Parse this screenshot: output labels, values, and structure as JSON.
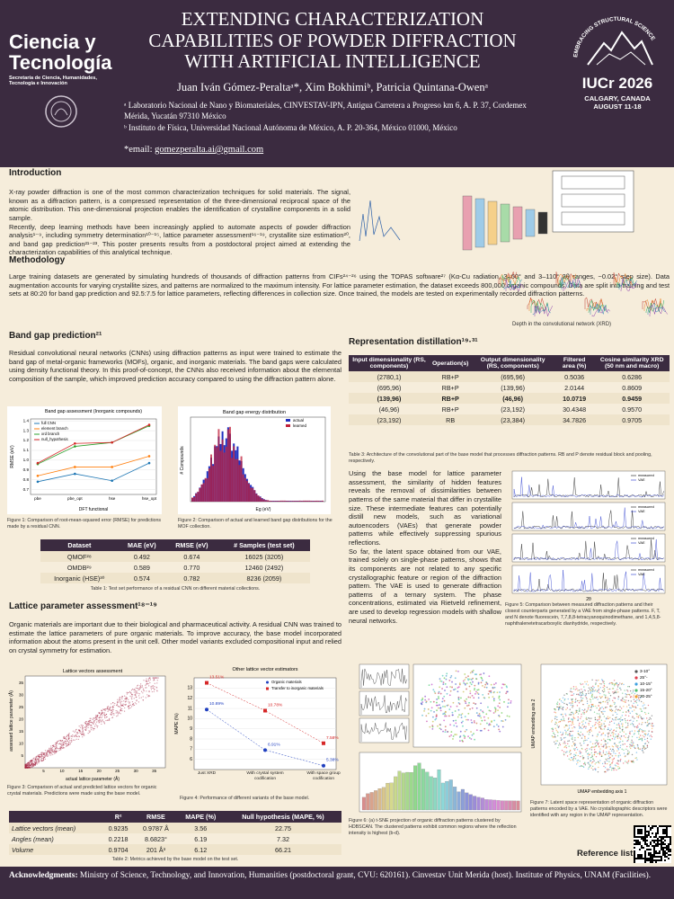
{
  "header": {
    "logo_left": [
      "Ciencia y",
      "Tecnología",
      "Secretaría de Ciencia, Humanidades, Tecnología e Innovación"
    ],
    "title": "EXTENDING CHARACTERIZATION CAPABILITIES OF POWDER DIFFRACTION WITH ARTIFICIAL INTELLIGENCE",
    "authors": "Juan Iván Gómez-Peraltaᵃ*, Xim Bokhimiᵇ, Patricia Quintana-Owenᵃ",
    "affiliations": [
      "ᵃ Laboratorio Nacional de Nano y Biomateriales, CINVESTAV-IPN, Antigua Carretera a Progreso km 6, A. P. 37, Cordemex Mérida, Yucatán 97310 México",
      "ᵇ Instituto de Física, Universidad Nacional Autónoma de México, A. P. 20-364, México 01000, México"
    ],
    "email_label": "*email: ",
    "email": "gomezperalta.ai@gmail.com",
    "logo_right": [
      "EMBRACING STRUCTURAL SCIENCE",
      "IUCr 2026",
      "CALGARY, CANADA",
      "AUGUST 11-18"
    ]
  },
  "introduction": {
    "heading": "Introduction",
    "paragraphs": [
      "X-ray powder diffraction is one of the most common characterization techniques for solid materials. The signal, known as a diffraction pattern, is a compressed representation of the three-dimensional reciprocal space of the atomic distribution. This one-dimensional projection enables the identification of crystalline components in a solid sample.",
      "Recently, deep learning methods have been increasingly applied to automate aspects of powder diffraction analysis¹⁻⁹, including symmetry determination¹⁰⁻¹⁵, lattice parameter assessment¹⁶⁻¹⁹, crystallite size estimation²⁰, and band gap prediction²¹⁻²³. This poster presents results from a postdoctoral project aimed at extending the characterization capabilities of this analytical technique."
    ]
  },
  "methodology": {
    "heading": "Methodology",
    "text": "Large training datasets are generated by simulating hundreds of thousands of diffraction patterns from CIFs²⁴⁻²⁶ using the TOPAS software²⁷ (Kα-Cu radiation, 3–60° and 3–110° 2θ ranges, ~0.02° step size). Data augmentation accounts for varying crystallite sizes, and patterns are normalized to the maximum intensity. For lattice parameter estimation, the dataset exceeds 800,000 organic compounds. Data are split into training and test sets at 80:20 for band gap prediction and 92.5:7.5 for lattice parameters, reflecting differences in collection size. Once trained, the models are tested on experimentally recorded diffraction patterns."
  },
  "network_figure_caption": "Depth in the convolutional network (XRD)",
  "band_gap": {
    "heading": "Band gap prediction²¹",
    "text": "Residual convolutional neural networks (CNNs) using diffraction patterns as input were trained to estimate the band gap of metal-organic frameworks (MOFs), organic, and inorganic materials. The band gaps were calculated using density functional theory. In this proof-of-concept, the CNNs also received information about the elemental composition of the sample, which improved prediction accuracy compared to using the diffraction pattern alone.",
    "figure1_caption": "Figure 1: Comparison of root-mean-squared error (RMSE) for predictions made by a residual CNN.",
    "figure2": {
      "title": "Band gap energy distribution",
      "x_label": "Eg (eV)",
      "y_label": "# Compounds",
      "legend": [
        "actual",
        "learned"
      ]
    },
    "figure2_caption": "Figure 2: Comparison of actual and learned band gap distributions for the MOF collection.",
    "table1": {
      "headers": [
        "Dataset",
        "MAE (eV)",
        "RMSE (eV)",
        "# Samples (test set)"
      ],
      "rows": [
        [
          "QMOF²⁸",
          "0.492",
          "0.674",
          "16025 (3205)"
        ],
        [
          "OMDB²⁹",
          "0.589",
          "0.770",
          "12460 (2492)"
        ],
        [
          "Inorganic (HSE)³⁰",
          "0.574",
          "0.782",
          "8236 (2059)"
        ]
      ],
      "caption": "Table 1: Test set performance of a residual CNN on different material collections."
    }
  },
  "lattice": {
    "heading": "Lattice parameter assessment¹⁸⁻¹⁹",
    "text": "Organic materials are important due to their biological and pharmaceutical activity. A residual CNN was trained to estimate the lattice parameters of pure organic materials. To improve accuracy, the base model incorporated information about the atoms present in the unit cell. Other model variants excluded compositional input and relied on crystal symmetry for estimation.",
    "figure3": {
      "title": "Lattice vectors assessment",
      "x_label": "actual lattice parameter (Å)",
      "y_label": "assessed lattice parameter (Å)",
      "ticks": [
        5,
        10,
        15,
        20,
        25,
        30,
        35
      ]
    },
    "figure3_caption": "Figure 3: Comparison of actual and predicted lattice vectors for organic crystal materials. Predictions were made using the base model.",
    "figure4_caption": "Figure 4: Performance of different variants of the base model.",
    "table2": {
      "headers": [
        "",
        "R²",
        "RMSE",
        "MAPE (%)",
        "Null hypothesis (MAPE, %)"
      ],
      "rows": [
        [
          "Lattice vectors (mean)",
          "0.9235",
          "0.9787 Å",
          "3.56",
          "22.75"
        ],
        [
          "Angles (mean)",
          "0.2218",
          "8.6823°",
          "6.19",
          "7.32"
        ],
        [
          "Volume",
          "0.9704",
          "201 Å³",
          "6.12",
          "66.21"
        ]
      ],
      "caption": "Table 2: Metrics achieved by the base model on the test set."
    }
  },
  "chart_data": [
    {
      "type": "line",
      "title": "Band gap assessment (Inorganic compounds)",
      "x_label": "DFT functional",
      "y_label": "RMSE (eV)",
      "categories": [
        "pbe",
        "pbe_opt",
        "hse",
        "hse_opt"
      ],
      "series": [
        {
          "name": "full CNN",
          "color": "#1f77b4",
          "values": [
            0.78,
            0.86,
            0.79,
            0.97
          ]
        },
        {
          "name": "element branch",
          "color": "#ff7f0e",
          "values": [
            0.84,
            0.93,
            0.93,
            1.04
          ]
        },
        {
          "name": "xrd branch",
          "color": "#2ca02c",
          "values": [
            0.96,
            1.14,
            1.18,
            1.35
          ]
        },
        {
          "name": "null_hypothesis",
          "color": "#d62728",
          "values": [
            0.97,
            1.17,
            1.18,
            1.36
          ]
        }
      ],
      "ylim": [
        0.65,
        1.42
      ],
      "yticks": [
        0.7,
        0.8,
        0.9,
        {
          "value": 1,
          "label": "1.0"
        },
        1.1,
        1.2,
        1.3,
        1.4
      ],
      "grid": true,
      "legend": "upper left"
    },
    {
      "type": "scatter",
      "title": "Other lattice vector estimators",
      "y_label": "MAPE (%)",
      "categories": [
        "Just XRD",
        "With crystal system codification",
        "With space group codification"
      ],
      "series": [
        {
          "name": "Organic materials",
          "color": "#1f3fbf",
          "values": [
            10.89,
            6.91,
            5.38
          ],
          "value_labels": [
            "10.89%",
            "6.91%",
            "5.38%"
          ]
        },
        {
          "name": "Transfer to inorganic materials",
          "color": "#d62728",
          "values": [
            13.51,
            10.78,
            7.58
          ],
          "value_labels": [
            "13.51%",
            "10.78%",
            "7.58%"
          ]
        }
      ],
      "ylim": [
        5,
        14
      ],
      "yticks": [
        6,
        7,
        8,
        9,
        10,
        11,
        12,
        13
      ],
      "grid": true,
      "legend": "upper right"
    }
  ],
  "distillation": {
    "heading": "Representation distillation¹⁹·³¹",
    "table3": {
      "headers": [
        "Input dimensionality (RS, components)",
        "Operation(s)",
        "Output dimensionality (RS, components)",
        "Filtered area (%)",
        "Cosine similarity XRD (50 nm and macro)"
      ],
      "rows": [
        [
          "(2780,1)",
          "RB+P",
          "(695,96)",
          "0.5036",
          "0.6286"
        ],
        [
          "(695,96)",
          "RB+P",
          "(139,96)",
          "2.0144",
          "0.8609"
        ],
        [
          "(139,96)",
          "RB+P",
          "(46,96)",
          "10.0719",
          "0.9459"
        ],
        [
          "(46,96)",
          "RB+P",
          "(23,192)",
          "30.4348",
          "0.9570"
        ],
        [
          "(23,192)",
          "RB",
          "(23,384)",
          "34.7826",
          "0.9705"
        ]
      ],
      "caption": "Table 3: Architecture of the convolutional part of the base model that processes diffraction patterns. RB and P denote residual block and pooling, respectively."
    },
    "paragraphs": [
      "Using the base model for lattice parameter assessment, the similarity of hidden features reveals the removal of dissimilarities between patterns of the same material that differ in crystallite size. These intermediate features can potentially distill new models, such as variational autoencoders (VAEs) that generate powder patterns while effectively suppressing spurious reflections.",
      "So far, the latent space obtained from our VAE, trained solely on single-phase patterns, shows that its components are not related to any specific crystallographic feature or region of the diffraction pattern. The VAE is used to generate diffraction patterns of a ternary system. The phase concentrations, estimated via Rietveld refinement, are used to develop regression models with shallow neural networks."
    ],
    "figure5": {
      "legend": [
        "measured",
        "VAE"
      ],
      "x_label": "2θ"
    },
    "figure5_caption": "Figure 5: Comparison between measured diffraction patterns and their closest counterparts generated by a VAE from single-phase patterns. F, T, and N denote fluorescein, 7,7,8,8-tetracyanoquinodimethane, and 1,4,5,8-naphthalenetetracarboxylic dianhydride, respectively.",
    "figure6_caption": "Figure 6: (a) t-SNE projection of organic diffraction patterns clustered by HDBSCAN. The clustered patterns exhibit common regions where the reflection intensity is highest (b-d).",
    "figure7": {
      "legend": [
        "3-10°",
        "25°-",
        "10-15°",
        "15-20°",
        "20-25°"
      ],
      "x_label": "UMAP embedding axis 1",
      "y_label": "UMAP embedding axis 2"
    },
    "figure7_caption": "Figure 7: Latent space representation of organic diffraction patterns encoded by a VAE. No crystallographic descriptors were identified with any region in the UMAP representation.",
    "reference_list": "Reference list:"
  },
  "footer": {
    "label": "Acknowledgments:",
    "text": " Ministry of Science, Technology, and Innovation, Humanities (postdoctoral grant, CVU: 620161). Cinvestav Unit Merida (host). Institute of Physics, UNAM (Facilities)."
  }
}
